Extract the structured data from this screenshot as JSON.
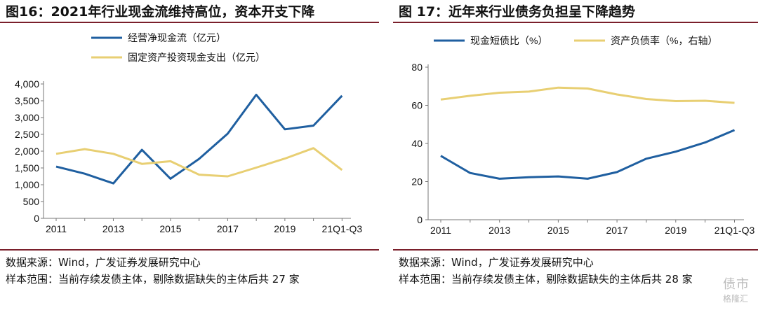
{
  "left": {
    "title": "图16：2021年行业现金流维持高位，资本开支下降",
    "source": "数据来源：Wind，广发证券发展研究中心",
    "sample": "样本范围：当前存续发债主体，剔除数据缺失的主体后共 27 家"
  },
  "right": {
    "title": "图 17：近年来行业债务负担呈下降趋势",
    "source": "数据来源：Wind，广发证券发展研究中心",
    "sample": "样本范围：当前存续发债主体，剔除数据缺失的主体后共 28 家"
  },
  "watermark": {
    "line1": "债市",
    "line2": "格隆汇"
  },
  "chart_data": [
    {
      "type": "line",
      "x": [
        "2011",
        "2012",
        "2013",
        "2014",
        "2015",
        "2016",
        "2017",
        "2018",
        "2019",
        "2020",
        "21Q1-Q3"
      ],
      "tick_labels": [
        "2011",
        "2013",
        "2015",
        "2017",
        "2019",
        "21Q1-Q3"
      ],
      "ylim": [
        0,
        4000
      ],
      "yticks": [
        0,
        500,
        1000,
        1500,
        2000,
        2500,
        3000,
        3500,
        4000
      ],
      "ytick_labels": [
        "0",
        "500",
        "1,000",
        "1,500",
        "2,000",
        "2,500",
        "3,000",
        "3,500",
        "4,000"
      ],
      "legend_position": "top",
      "grid": false,
      "series": [
        {
          "name": "经营净现金流（亿元）",
          "color": "#1f5fa0",
          "values": [
            1540,
            1330,
            1040,
            2040,
            1180,
            1770,
            2520,
            3680,
            2650,
            2760,
            3650
          ]
        },
        {
          "name": "固定资产投资现金支出（亿元）",
          "color": "#e8cf73",
          "values": [
            1920,
            2060,
            1920,
            1620,
            1700,
            1300,
            1250,
            1510,
            1780,
            2090,
            1440
          ]
        }
      ]
    },
    {
      "type": "line",
      "x": [
        "2011",
        "2012",
        "2013",
        "2014",
        "2015",
        "2016",
        "2017",
        "2018",
        "2019",
        "2020",
        "21Q1-Q3"
      ],
      "tick_labels": [
        "2011",
        "2013",
        "2015",
        "2017",
        "2019",
        "21Q1-Q3"
      ],
      "ylim": [
        0,
        80
      ],
      "yticks": [
        0,
        20,
        40,
        60,
        80
      ],
      "ytick_labels": [
        "0",
        "20",
        "40",
        "60",
        "80"
      ],
      "legend_position": "top",
      "grid": false,
      "series": [
        {
          "name": "现金短债比（%）",
          "color": "#1f5fa0",
          "values": [
            33.5,
            24.5,
            21.5,
            22.3,
            22.7,
            21.5,
            25,
            32,
            35.7,
            40.5,
            47
          ]
        },
        {
          "name": "资产负债率（%，右轴）",
          "color": "#e8cf73",
          "values": [
            63,
            65,
            66.6,
            67.2,
            69.3,
            68.8,
            65.7,
            63.3,
            62.2,
            62.4,
            61.3
          ]
        }
      ]
    }
  ]
}
